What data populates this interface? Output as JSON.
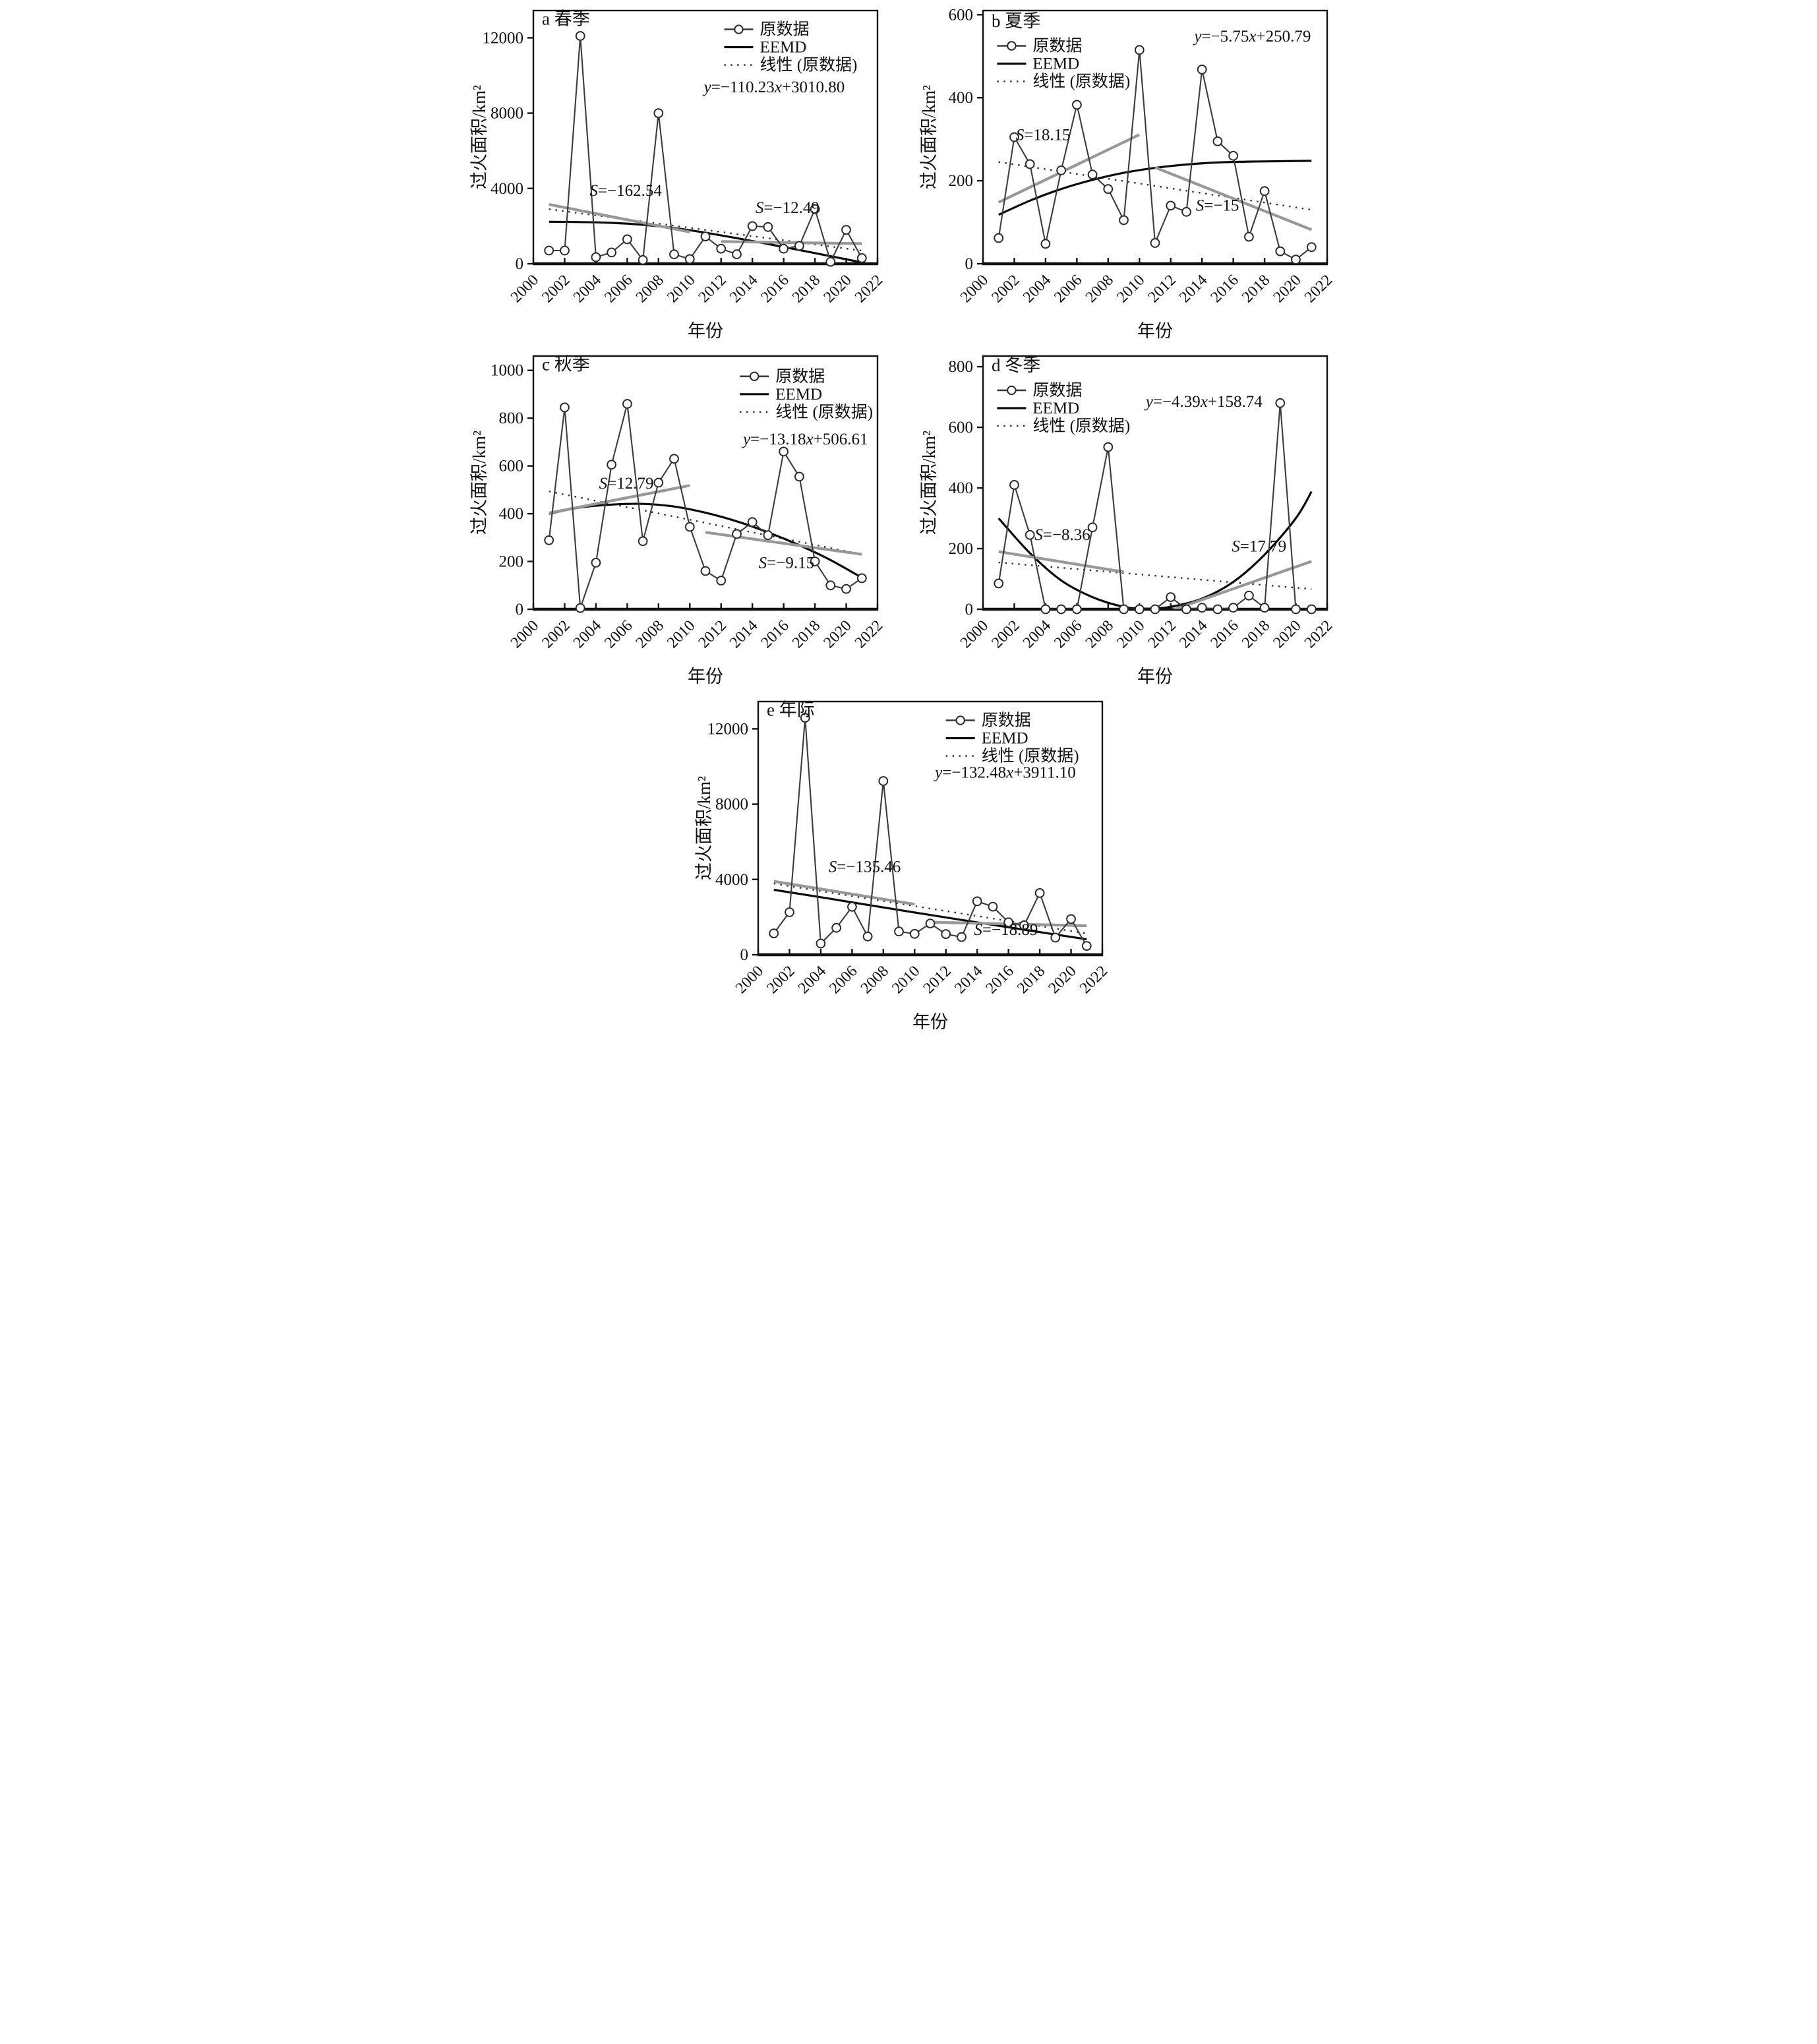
{
  "figure": {
    "xlabel": "年份",
    "ylabel": "过火面积/km²",
    "legend": [
      "原数据",
      "EEMD",
      "线性 (原数据)"
    ],
    "x_ticks": [
      2000,
      2002,
      2004,
      2006,
      2008,
      2010,
      2012,
      2014,
      2016,
      2018,
      2020,
      2022
    ],
    "xlim": [
      2000,
      2022
    ],
    "colors": {
      "data_line": "#3c3c3c",
      "eemd": "#0b0b0b",
      "linear_dotted": "#2a2a2a",
      "trend_gray": "#989898",
      "marker_fill": "#ffffff",
      "axis": "#111111"
    }
  },
  "chart_data": [
    {
      "id": "a",
      "type": "line",
      "title": "a 春季",
      "equation": "y=−110.23x+3010.80",
      "ylim": [
        0,
        13450
      ],
      "yticks": [
        0,
        4000,
        8000,
        12000
      ],
      "years": [
        2001,
        2002,
        2003,
        2004,
        2005,
        2006,
        2007,
        2008,
        2009,
        2010,
        2011,
        2012,
        2013,
        2014,
        2015,
        2016,
        2017,
        2018,
        2019,
        2020,
        2021
      ],
      "values": [
        700,
        700,
        12100,
        350,
        600,
        1300,
        200,
        8000,
        500,
        250,
        1450,
        800,
        500,
        2000,
        1950,
        800,
        950,
        2900,
        100,
        1800,
        300
      ],
      "eemd": [
        [
          2001,
          2230
        ],
        [
          2003,
          2215
        ],
        [
          2005,
          2170
        ],
        [
          2007,
          2070
        ],
        [
          2009,
          1900
        ],
        [
          2011,
          1650
        ],
        [
          2013,
          1360
        ],
        [
          2015,
          1050
        ],
        [
          2017,
          730
        ],
        [
          2019,
          400
        ],
        [
          2021,
          70
        ]
      ],
      "linear": {
        "slope": -110.23,
        "intercept": 3010.8
      },
      "trend_segments": [
        {
          "label": "S=−162.54",
          "x1": 2001,
          "y1": 3150,
          "x2": 2010,
          "y2": 1688,
          "label_pos": [
            2003.6,
            3600
          ]
        },
        {
          "label": "S=−12.49",
          "x1": 2012,
          "y1": 1180,
          "x2": 2021,
          "y2": 1068,
          "label_pos": [
            2014.2,
            2700
          ]
        }
      ],
      "equation_pos": [
        2010.9,
        9100
      ],
      "legend_pos": [
        2012.2,
        12450
      ],
      "title_pos": [
        2000.55,
        12700
      ]
    },
    {
      "id": "b",
      "type": "line",
      "title": "b 夏季",
      "equation": "y=−5.75x+250.79",
      "ylim": [
        0,
        610
      ],
      "yticks": [
        0,
        200,
        400,
        600
      ],
      "years": [
        2001,
        2002,
        2003,
        2004,
        2005,
        2006,
        2007,
        2008,
        2009,
        2010,
        2011,
        2012,
        2013,
        2014,
        2015,
        2016,
        2017,
        2018,
        2019,
        2020,
        2021
      ],
      "values": [
        62,
        305,
        240,
        48,
        225,
        383,
        215,
        180,
        105,
        515,
        50,
        140,
        125,
        468,
        295,
        260,
        65,
        175,
        30,
        10,
        40
      ],
      "eemd": [
        [
          2001,
          118
        ],
        [
          2003,
          152
        ],
        [
          2005,
          180
        ],
        [
          2007,
          202
        ],
        [
          2009,
          219
        ],
        [
          2011,
          231
        ],
        [
          2013,
          239
        ],
        [
          2015,
          244
        ],
        [
          2017,
          246
        ],
        [
          2019,
          247
        ],
        [
          2021,
          248
        ]
      ],
      "linear": {
        "slope": -5.75,
        "intercept": 250.79
      },
      "trend_segments": [
        {
          "label": "S=18.15",
          "x1": 2001,
          "y1": 148,
          "x2": 2010,
          "y2": 311,
          "label_pos": [
            2002.1,
            298
          ]
        },
        {
          "label": "S=−15",
          "x1": 2011,
          "y1": 232,
          "x2": 2021,
          "y2": 82,
          "label_pos": [
            2013.6,
            128
          ]
        }
      ],
      "equation_pos": [
        2013.5,
        535
      ],
      "legend_pos": [
        2000.9,
        525
      ],
      "title_pos": [
        2000.55,
        570
      ]
    },
    {
      "id": "c",
      "type": "line",
      "title": "c 秋季",
      "equation": "y=−13.18x+506.61",
      "ylim": [
        0,
        1060
      ],
      "yticks": [
        0,
        200,
        400,
        600,
        800,
        1000
      ],
      "years": [
        2001,
        2002,
        2003,
        2004,
        2005,
        2006,
        2007,
        2008,
        2009,
        2010,
        2011,
        2012,
        2013,
        2014,
        2015,
        2016,
        2017,
        2018,
        2019,
        2020,
        2021
      ],
      "values": [
        289,
        845,
        5,
        195,
        605,
        860,
        285,
        530,
        630,
        345,
        160,
        120,
        315,
        365,
        310,
        660,
        555,
        200,
        100,
        85,
        130
      ],
      "eemd": [
        [
          2001,
          400
        ],
        [
          2003,
          426
        ],
        [
          2005,
          438
        ],
        [
          2007,
          441
        ],
        [
          2009,
          430
        ],
        [
          2011,
          404
        ],
        [
          2013,
          368
        ],
        [
          2015,
          322
        ],
        [
          2017,
          268
        ],
        [
          2019,
          206
        ],
        [
          2021,
          132
        ]
      ],
      "linear": {
        "slope": -13.18,
        "intercept": 506.61
      },
      "trend_segments": [
        {
          "label": "S=12.79",
          "x1": 2001,
          "y1": 403,
          "x2": 2010,
          "y2": 518,
          "label_pos": [
            2004.2,
            505
          ]
        },
        {
          "label": "S=−9.15",
          "x1": 2011,
          "y1": 322,
          "x2": 2021,
          "y2": 230,
          "label_pos": [
            2014.4,
            172
          ]
        }
      ],
      "equation_pos": [
        2013.4,
        690
      ],
      "legend_pos": [
        2013.2,
        975
      ],
      "title_pos": [
        2000.55,
        1000
      ]
    },
    {
      "id": "d",
      "type": "line",
      "title": "d 冬季",
      "equation": "y=−4.39x+158.74",
      "ylim": [
        0,
        835
      ],
      "yticks": [
        0,
        200,
        400,
        600,
        800
      ],
      "years": [
        2001,
        2002,
        2003,
        2004,
        2005,
        2006,
        2007,
        2008,
        2009,
        2010,
        2011,
        2012,
        2013,
        2014,
        2015,
        2016,
        2017,
        2018,
        2019,
        2020,
        2021
      ],
      "values": [
        85,
        410,
        245,
        0,
        0,
        0,
        270,
        535,
        0,
        0,
        0,
        40,
        0,
        5,
        0,
        5,
        45,
        5,
        680,
        0,
        0
      ],
      "eemd": [
        [
          2001,
          300
        ],
        [
          2003,
          185
        ],
        [
          2005,
          95
        ],
        [
          2007,
          40
        ],
        [
          2009,
          8
        ],
        [
          2010.5,
          2
        ],
        [
          2012,
          8
        ],
        [
          2014,
          35
        ],
        [
          2016,
          90
        ],
        [
          2018,
          180
        ],
        [
          2020,
          300
        ],
        [
          2021,
          388
        ]
      ],
      "linear": {
        "slope": -4.39,
        "intercept": 158.74
      },
      "trend_segments": [
        {
          "label": "S=−8.36",
          "x1": 2001,
          "y1": 190,
          "x2": 2009,
          "y2": 123,
          "label_pos": [
            2003.3,
            228
          ]
        },
        {
          "label": "S=17.79",
          "x1": 2011,
          "y1": -23,
          "x2": 2021,
          "y2": 158,
          "label_pos": [
            2015.9,
            190
          ]
        }
      ],
      "equation_pos": [
        2010.4,
        668
      ],
      "legend_pos": [
        2000.9,
        722
      ],
      "title_pos": [
        2000.55,
        785
      ]
    },
    {
      "id": "e",
      "type": "line",
      "title": "e 年际",
      "equation": "y=−132.48x+3911.10",
      "ylim": [
        0,
        13450
      ],
      "yticks": [
        0,
        4000,
        8000,
        12000
      ],
      "years": [
        2001,
        2002,
        2003,
        2004,
        2005,
        2006,
        2007,
        2008,
        2009,
        2010,
        2011,
        2012,
        2013,
        2014,
        2015,
        2016,
        2017,
        2018,
        2019,
        2020,
        2021
      ],
      "values": [
        1136,
        2260,
        12590,
        595,
        1430,
        2545,
        970,
        9230,
        1235,
        1110,
        1660,
        1100,
        940,
        2840,
        2555,
        1725,
        1565,
        3280,
        910,
        1895,
        470
      ],
      "eemd": [
        [
          2001,
          3450
        ],
        [
          2005,
          2920
        ],
        [
          2009,
          2380
        ],
        [
          2013,
          1850
        ],
        [
          2017,
          1330
        ],
        [
          2021,
          820
        ]
      ],
      "linear": {
        "slope": -132.48,
        "intercept": 3911.1
      },
      "trend_segments": [
        {
          "label": "S=−135.46",
          "x1": 2001,
          "y1": 3900,
          "x2": 2010,
          "y2": 2681,
          "label_pos": [
            2004.5,
            4400
          ]
        },
        {
          "label": "S=−18.89",
          "x1": 2011,
          "y1": 1730,
          "x2": 2021,
          "y2": 1541,
          "label_pos": [
            2013.8,
            1050
          ]
        }
      ],
      "equation_pos": [
        2011.3,
        9400
      ],
      "legend_pos": [
        2012.0,
        12450
      ],
      "title_pos": [
        2000.55,
        12700
      ]
    }
  ]
}
